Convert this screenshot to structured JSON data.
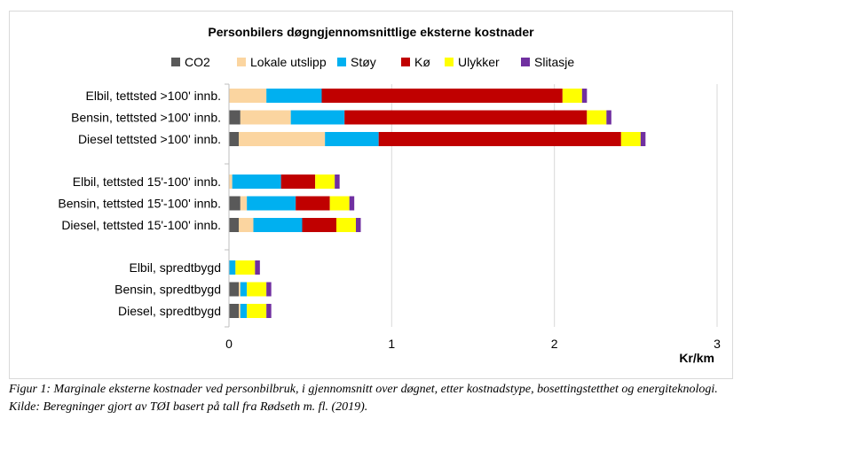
{
  "chart_data": {
    "type": "bar",
    "orientation": "horizontal",
    "stacked": true,
    "title": "Personbilers døgngjennomsnittlige eksterne kostnader",
    "xlabel": "Kr/km",
    "xlim": [
      0,
      3
    ],
    "xticks": [
      "0",
      "1",
      "2",
      "3"
    ],
    "grid": "vertical",
    "legend": "top",
    "categories": [
      "Elbil, tettsted >100' innb.",
      "Bensin, tettsted >100' innb.",
      "Diesel tettsted >100' innb.",
      "Elbil, tettsted 15'-100' innb.",
      "Bensin, tettsted 15'-100' innb.",
      "Diesel, tettsted 15'-100' innb.",
      "Elbil, spredtbygd",
      "Bensin, spredtbygd",
      "Diesel, spredtbygd"
    ],
    "groups": [
      [
        0,
        1,
        2
      ],
      [
        3,
        4,
        5
      ],
      [
        6,
        7,
        8
      ]
    ],
    "series": [
      {
        "name": "CO2",
        "color": "#595959",
        "values": [
          0.0,
          0.07,
          0.06,
          0.0,
          0.07,
          0.06,
          0.0,
          0.06,
          0.06
        ]
      },
      {
        "name": "Lokale utslipp",
        "color": "#fbd5a0",
        "values": [
          0.23,
          0.31,
          0.53,
          0.02,
          0.04,
          0.09,
          0.0,
          0.01,
          0.01
        ]
      },
      {
        "name": "Støy",
        "color": "#00b0f0",
        "values": [
          0.34,
          0.33,
          0.33,
          0.3,
          0.3,
          0.3,
          0.04,
          0.04,
          0.04
        ]
      },
      {
        "name": "Kø",
        "color": "#c00000",
        "values": [
          1.48,
          1.49,
          1.49,
          0.21,
          0.21,
          0.21,
          0.0,
          0.0,
          0.0
        ]
      },
      {
        "name": "Ulykker",
        "color": "#ffff00",
        "values": [
          0.12,
          0.12,
          0.12,
          0.12,
          0.12,
          0.12,
          0.12,
          0.12,
          0.12
        ]
      },
      {
        "name": "Slitasje",
        "color": "#7030a0",
        "values": [
          0.03,
          0.03,
          0.03,
          0.03,
          0.03,
          0.03,
          0.03,
          0.03,
          0.03
        ]
      }
    ]
  },
  "caption": {
    "line1": "Figur 1: Marginale eksterne kostnader ved personbilbruk, i gjennomsnitt over døgnet, etter kostnadstype, bosettingstetthet og energiteknologi.",
    "line2": "Kilde: Beregninger gjort av TØI basert på tall fra Rødseth m. fl. (2019)."
  }
}
